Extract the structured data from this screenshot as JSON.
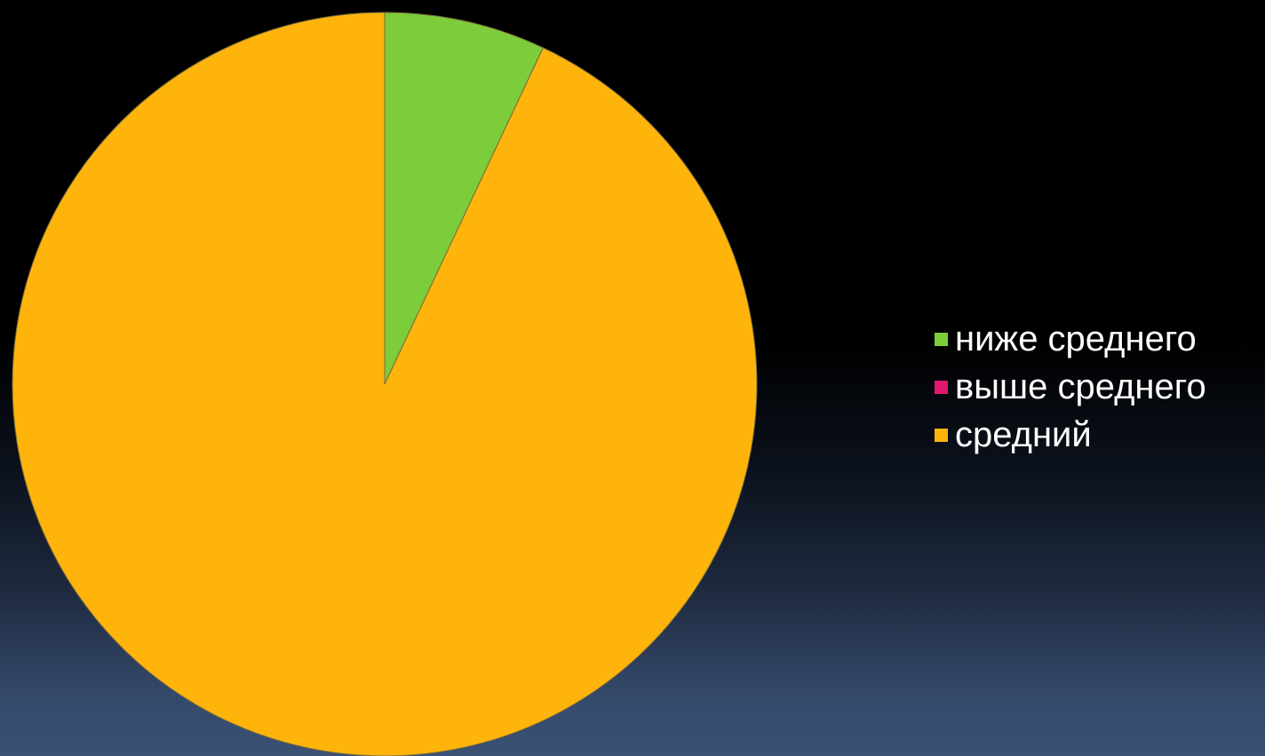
{
  "chart_data": {
    "type": "pie",
    "title": "",
    "categories": [
      "ниже среднего",
      "выше среднего",
      "средний"
    ],
    "values": [
      7,
      0,
      93
    ],
    "colors": [
      "#7dcc3a",
      "#e0186e",
      "#ffb40c"
    ],
    "start_angle_deg": 0,
    "direction": "clockwise",
    "legend_position": "right"
  }
}
